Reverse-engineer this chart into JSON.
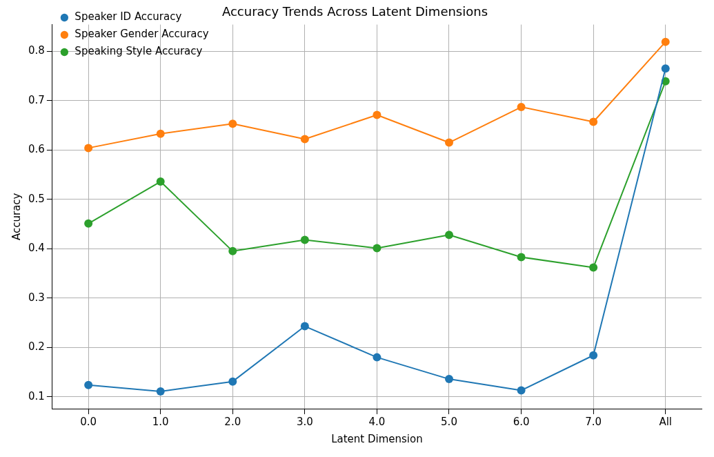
{
  "chart_data": {
    "type": "line",
    "title": "Accuracy Trends Across Latent Dimensions",
    "xlabel": "Latent Dimension",
    "ylabel": "Accuracy",
    "categories": [
      "0.0",
      "1.0",
      "2.0",
      "3.0",
      "4.0",
      "5.0",
      "6.0",
      "7.0",
      "All"
    ],
    "series": [
      {
        "name": "Speaker ID Accuracy",
        "color": "#1f77b4",
        "values": [
          0.124,
          0.111,
          0.131,
          0.243,
          0.18,
          0.136,
          0.113,
          0.184,
          0.765
        ]
      },
      {
        "name": "Speaker Gender Accuracy",
        "color": "#ff7f0e",
        "values": [
          0.604,
          0.633,
          0.653,
          0.622,
          0.671,
          0.615,
          0.687,
          0.657,
          0.819
        ]
      },
      {
        "name": "Speaking Style Accuracy",
        "color": "#2ca02c",
        "values": [
          0.451,
          0.536,
          0.395,
          0.418,
          0.401,
          0.428,
          0.383,
          0.362,
          0.739
        ]
      }
    ],
    "ylim": [
      0.076,
      0.854
    ],
    "yticks": [
      0.1,
      0.2,
      0.3,
      0.4,
      0.5,
      0.6,
      0.7,
      0.8
    ],
    "grid": true,
    "legend": "top left",
    "marker": "circle",
    "line_style": "solid"
  }
}
